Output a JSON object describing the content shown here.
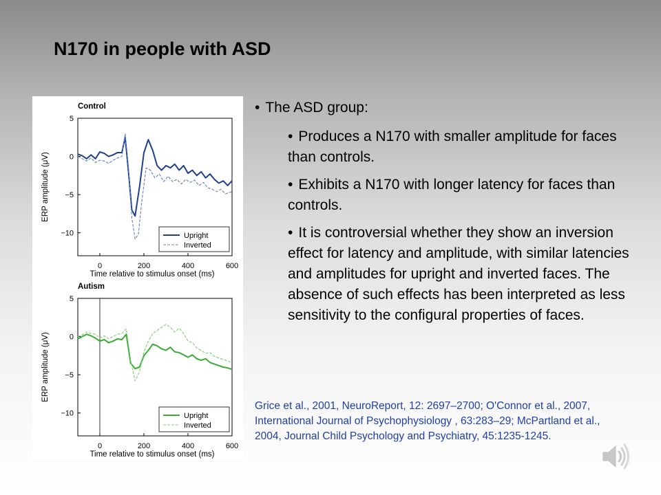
{
  "slide": {
    "title": "N170 in people with ASD",
    "bullet_main": "The ASD group:",
    "sub_bullets": [
      "Produces a N170 with smaller amplitude for faces than controls.",
      "Exhibits a N170 with longer latency for faces than controls.",
      "It is controversial whether they show an inversion effect for latency and amplitude, with similar latencies and amplitudes for upright and inverted faces. The absence of such effects has been interpreted as less sensitivity to the configural properties of faces."
    ],
    "references": "Grice et al., 2001, NeuroReport, 12: 2697–2700; O'Connor et al., 2007, International Journal  of Psychophysiology , 63:283–29; McPartland et al., 2004, Journal Child Psychology and Psychiatry, 45:1235-1245.",
    "bullet_glyph": "•",
    "speaker_icon": "speaker-icon"
  },
  "chart_data": [
    {
      "type": "line",
      "title": "Control",
      "xlabel": "Time relative to stimulus onset (ms)",
      "ylabel": "ERP amplitude (μV)",
      "xlim": [
        -100,
        600
      ],
      "ylim": [
        -13,
        5
      ],
      "xticks": [
        "0",
        "200",
        "400",
        "600"
      ],
      "yticks": [
        "5",
        "0",
        "−5",
        "−10"
      ],
      "legend_position": "bottom-right",
      "series": [
        {
          "name": "Upright",
          "color": "#1f3f8a",
          "dash": false,
          "x": [
            -100,
            -80,
            -60,
            -40,
            -20,
            0,
            20,
            40,
            60,
            80,
            100,
            115,
            130,
            145,
            160,
            180,
            200,
            220,
            240,
            260,
            280,
            300,
            320,
            340,
            360,
            380,
            400,
            420,
            440,
            460,
            480,
            500,
            520,
            540,
            560,
            580,
            600
          ],
          "y": [
            0.3,
            0.1,
            -0.3,
            0.2,
            -0.3,
            0.6,
            0.4,
            0.0,
            0.2,
            0.5,
            0.5,
            2.5,
            -2.0,
            -7.0,
            -7.8,
            -4.0,
            0.5,
            2.2,
            0.8,
            -1.2,
            -1.8,
            -1.2,
            -1.5,
            -1.0,
            -1.8,
            -1.2,
            -2.2,
            -1.8,
            -2.5,
            -2.0,
            -2.8,
            -2.3,
            -3.0,
            -3.5,
            -3.2,
            -3.8,
            -3.2
          ]
        },
        {
          "name": "Inverted",
          "color": "#6080c0",
          "dash": true,
          "x": [
            -100,
            -80,
            -60,
            -40,
            -20,
            0,
            20,
            40,
            60,
            80,
            100,
            115,
            130,
            145,
            160,
            175,
            190,
            210,
            230,
            250,
            270,
            290,
            310,
            330,
            350,
            370,
            390,
            410,
            430,
            450,
            470,
            490,
            510,
            530,
            550,
            570,
            600
          ],
          "y": [
            0.0,
            -0.3,
            -0.6,
            -0.2,
            -0.8,
            -0.5,
            -0.6,
            -0.9,
            -0.5,
            -0.2,
            0.0,
            3.0,
            -1.5,
            -8.0,
            -10.8,
            -10.2,
            -6.0,
            -1.5,
            -1.8,
            -2.8,
            -2.3,
            -3.3,
            -2.6,
            -3.3,
            -3.0,
            -3.6,
            -3.0,
            -3.4,
            -3.1,
            -3.8,
            -3.4,
            -4.1,
            -4.3,
            -4.6,
            -4.3,
            -4.9,
            -4.6
          ]
        }
      ]
    },
    {
      "type": "line",
      "title": "Autism",
      "xlabel": "Time relative to stimulus onset (ms)",
      "ylabel": "ERP amplitude (μV)",
      "xlim": [
        -100,
        600
      ],
      "ylim": [
        -13,
        5
      ],
      "xticks": [
        "0",
        "200",
        "400",
        "600"
      ],
      "yticks": [
        "5",
        "0",
        "−5",
        "−10"
      ],
      "legend_position": "bottom-right",
      "series": [
        {
          "name": "Upright",
          "color": "#3aaa35",
          "dash": false,
          "x": [
            -100,
            -80,
            -60,
            -40,
            -20,
            0,
            20,
            40,
            60,
            80,
            100,
            120,
            140,
            160,
            180,
            200,
            220,
            240,
            260,
            280,
            300,
            320,
            340,
            360,
            380,
            400,
            420,
            440,
            460,
            480,
            500,
            520,
            540,
            560,
            580,
            600
          ],
          "y": [
            -0.3,
            0.0,
            0.3,
            0.1,
            -0.2,
            -0.6,
            -0.4,
            -0.8,
            -0.6,
            -0.3,
            -0.4,
            0.3,
            -3.5,
            -4.2,
            -4.0,
            -2.5,
            -1.8,
            -1.0,
            -1.2,
            -1.6,
            -1.8,
            -1.4,
            -2.0,
            -2.1,
            -2.4,
            -2.7,
            -2.4,
            -2.9,
            -3.1,
            -2.9,
            -3.4,
            -3.6,
            -3.8,
            -4.0,
            -4.1,
            -4.3
          ]
        },
        {
          "name": "Inverted",
          "color": "#7ccf6e",
          "dash": true,
          "x": [
            -100,
            -80,
            -60,
            -40,
            -20,
            0,
            20,
            40,
            60,
            80,
            100,
            120,
            140,
            160,
            180,
            200,
            220,
            240,
            260,
            280,
            300,
            320,
            340,
            360,
            380,
            400,
            420,
            440,
            460,
            480,
            500,
            520,
            540,
            560,
            580,
            600
          ],
          "y": [
            0.0,
            0.2,
            0.6,
            0.4,
            0.3,
            -0.2,
            0.1,
            -0.3,
            0.0,
            0.3,
            0.4,
            1.0,
            -3.2,
            -5.8,
            -4.6,
            -2.0,
            -0.6,
            0.4,
            0.8,
            1.2,
            1.6,
            1.2,
            0.6,
            1.1,
            0.4,
            -0.6,
            -0.8,
            -1.5,
            -1.8,
            -2.2,
            -2.1,
            -2.6,
            -2.8,
            -3.0,
            -3.2,
            -3.4
          ]
        }
      ]
    }
  ]
}
